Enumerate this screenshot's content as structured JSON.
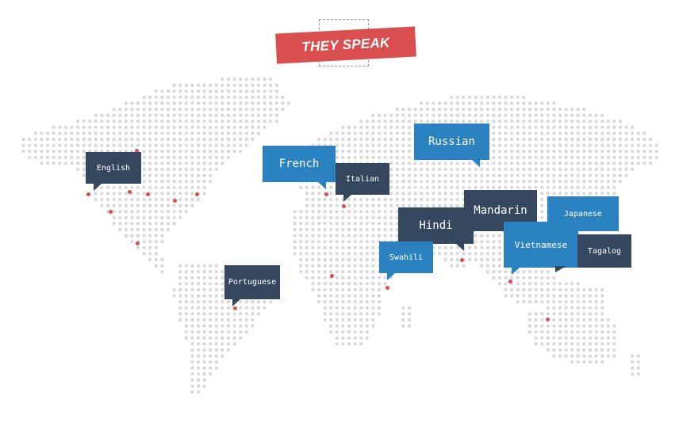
{
  "title": {
    "text": "THEY SPEAK"
  },
  "colors": {
    "accent": "#d94f4f",
    "dark": "#34475e",
    "light": "#2b82c0",
    "dot": "#d7d7d7"
  },
  "languages": [
    {
      "name": "English",
      "theme": "dark"
    },
    {
      "name": "French",
      "theme": "light"
    },
    {
      "name": "Italian",
      "theme": "dark"
    },
    {
      "name": "Russian",
      "theme": "light"
    },
    {
      "name": "Hindi",
      "theme": "dark"
    },
    {
      "name": "Mandarin",
      "theme": "dark"
    },
    {
      "name": "Japanese",
      "theme": "light"
    },
    {
      "name": "Swahili",
      "theme": "light"
    },
    {
      "name": "Vietnamese",
      "theme": "light"
    },
    {
      "name": "Tagalog",
      "theme": "dark"
    },
    {
      "name": "Portuguese",
      "theme": "dark"
    }
  ]
}
